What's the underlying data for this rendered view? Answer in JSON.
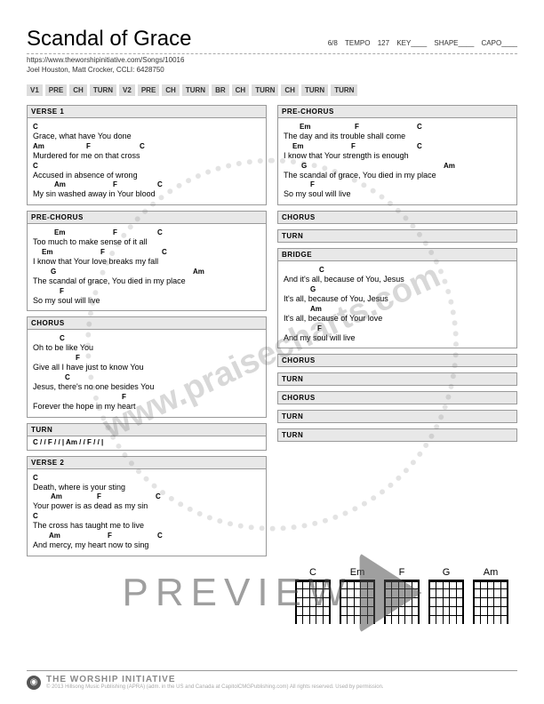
{
  "header": {
    "title": "Scandal of Grace",
    "time_sig": "6/8",
    "tempo_label": "TEMPO",
    "tempo": "127",
    "key_label": "KEY",
    "key": "",
    "shape_label": "SHAPE",
    "shape": "",
    "capo_label": "CAPO",
    "capo": "",
    "url": "https://www.theworshipinitiative.com/Songs/10016",
    "credits": "Joel Houston, Matt Crocker, CCLI: 6428750"
  },
  "arrangement": [
    "V1",
    "PRE",
    "CH",
    "TURN",
    "V2",
    "PRE",
    "CH",
    "TURN",
    "BR",
    "CH",
    "TURN",
    "CH",
    "TURN",
    "TURN"
  ],
  "left": [
    {
      "type": "section",
      "title": "VERSE 1",
      "lines": [
        {
          "lyric": "Grace, what have You done",
          "chords": [
            {
              "c": "C",
              "pos": 0
            }
          ]
        },
        {
          "lyric": "Murdered for me on that cross",
          "chords": [
            {
              "c": "Am",
              "pos": 0
            },
            {
              "c": "F",
              "pos": 60
            },
            {
              "c": "C",
              "pos": 120
            }
          ]
        },
        {
          "lyric": "Accused in absence of wrong",
          "chords": [
            {
              "c": "C",
              "pos": 0
            }
          ]
        },
        {
          "lyric": "My sin washed away in Your blood",
          "chords": [
            {
              "c": "Am",
              "pos": 24
            },
            {
              "c": "F",
              "pos": 90
            },
            {
              "c": "C",
              "pos": 140
            }
          ]
        }
      ]
    },
    {
      "type": "section",
      "title": "PRE-CHORUS",
      "lines": [
        {
          "lyric": "Too much to make sense of it all",
          "chords": [
            {
              "c": "Em",
              "pos": 24
            },
            {
              "c": "F",
              "pos": 90
            },
            {
              "c": "C",
              "pos": 140
            }
          ]
        },
        {
          "lyric": "I know that Your love breaks my fall",
          "chords": [
            {
              "c": "Em",
              "pos": 10
            },
            {
              "c": "F",
              "pos": 76
            },
            {
              "c": "C",
              "pos": 145
            }
          ]
        },
        {
          "lyric": "The scandal of grace, You died in my place",
          "chords": [
            {
              "c": "G",
              "pos": 20
            },
            {
              "c": "Am",
              "pos": 180
            }
          ]
        },
        {
          "lyric": "So my soul will live",
          "chords": [
            {
              "c": "F",
              "pos": 30
            }
          ]
        }
      ]
    },
    {
      "type": "section",
      "title": "CHORUS",
      "lines": [
        {
          "lyric": "Oh to be like You",
          "chords": [
            {
              "c": "C",
              "pos": 30
            }
          ]
        },
        {
          "lyric": "Give all I have just to know You",
          "chords": [
            {
              "c": "F",
              "pos": 48
            }
          ]
        },
        {
          "lyric": "Jesus, there's no one besides You",
          "chords": [
            {
              "c": "C",
              "pos": 36
            }
          ]
        },
        {
          "lyric": "Forever the hope in my heart",
          "chords": [
            {
              "c": "F",
              "pos": 100
            }
          ]
        }
      ]
    },
    {
      "type": "turn",
      "title": "TURN",
      "text": "C / / F / / | Am / / F / / |"
    },
    {
      "type": "section",
      "title": "VERSE 2",
      "lines": [
        {
          "lyric": "Death, where is your sting",
          "chords": [
            {
              "c": "C",
              "pos": 0
            }
          ]
        },
        {
          "lyric": "Your power is as dead as my sin",
          "chords": [
            {
              "c": "Am",
              "pos": 20
            },
            {
              "c": "F",
              "pos": 72
            },
            {
              "c": "C",
              "pos": 138
            }
          ]
        },
        {
          "lyric": "The cross has taught me to live",
          "chords": [
            {
              "c": "C",
              "pos": 0
            }
          ]
        },
        {
          "lyric": "And mercy, my heart now to sing",
          "chords": [
            {
              "c": "Am",
              "pos": 18
            },
            {
              "c": "F",
              "pos": 84
            },
            {
              "c": "C",
              "pos": 140
            }
          ]
        }
      ]
    }
  ],
  "right": [
    {
      "type": "section",
      "title": "PRE-CHORUS",
      "lines": [
        {
          "lyric": "The day and its trouble shall come",
          "chords": [
            {
              "c": "Em",
              "pos": 18
            },
            {
              "c": "F",
              "pos": 80
            },
            {
              "c": "C",
              "pos": 150
            }
          ]
        },
        {
          "lyric": "I know that Your strength is enough",
          "chords": [
            {
              "c": "Em",
              "pos": 10
            },
            {
              "c": "F",
              "pos": 76
            },
            {
              "c": "C",
              "pos": 150
            }
          ]
        },
        {
          "lyric": "The scandal of grace, You died in my place",
          "chords": [
            {
              "c": "G",
              "pos": 20
            },
            {
              "c": "Am",
              "pos": 180
            }
          ]
        },
        {
          "lyric": "So my soul will live",
          "chords": [
            {
              "c": "F",
              "pos": 30
            }
          ]
        }
      ]
    },
    {
      "type": "label",
      "title": "CHORUS"
    },
    {
      "type": "label",
      "title": "TURN"
    },
    {
      "type": "section",
      "title": "BRIDGE",
      "lines": [
        {
          "lyric": "And it's all, because of You, Jesus",
          "chords": [
            {
              "c": "C",
              "pos": 40
            }
          ]
        },
        {
          "lyric": "It's all, because of You, Jesus",
          "chords": [
            {
              "c": "G",
              "pos": 30
            }
          ]
        },
        {
          "lyric": "It's all, because of Your love",
          "chords": [
            {
              "c": "Am",
              "pos": 30
            }
          ]
        },
        {
          "lyric": "And my soul will live",
          "chords": [
            {
              "c": "F",
              "pos": 38
            }
          ]
        }
      ]
    },
    {
      "type": "label",
      "title": "CHORUS"
    },
    {
      "type": "label",
      "title": "TURN"
    },
    {
      "type": "label",
      "title": "CHORUS"
    },
    {
      "type": "label",
      "title": "TURN"
    },
    {
      "type": "label",
      "title": "TURN"
    }
  ],
  "chord_diagrams": [
    "C",
    "Em",
    "F",
    "G",
    "Am"
  ],
  "footer": {
    "brand": "THE WORSHIP INITIATIVE",
    "copyright": "© 2013 Hillsong Music Publishing (APRA) (adm. in the US and Canada at CapitolCMGPublishing.com) All rights reserved. Used by permission."
  },
  "watermark": "www.praisecharts.com",
  "preview": "PREVIEW"
}
